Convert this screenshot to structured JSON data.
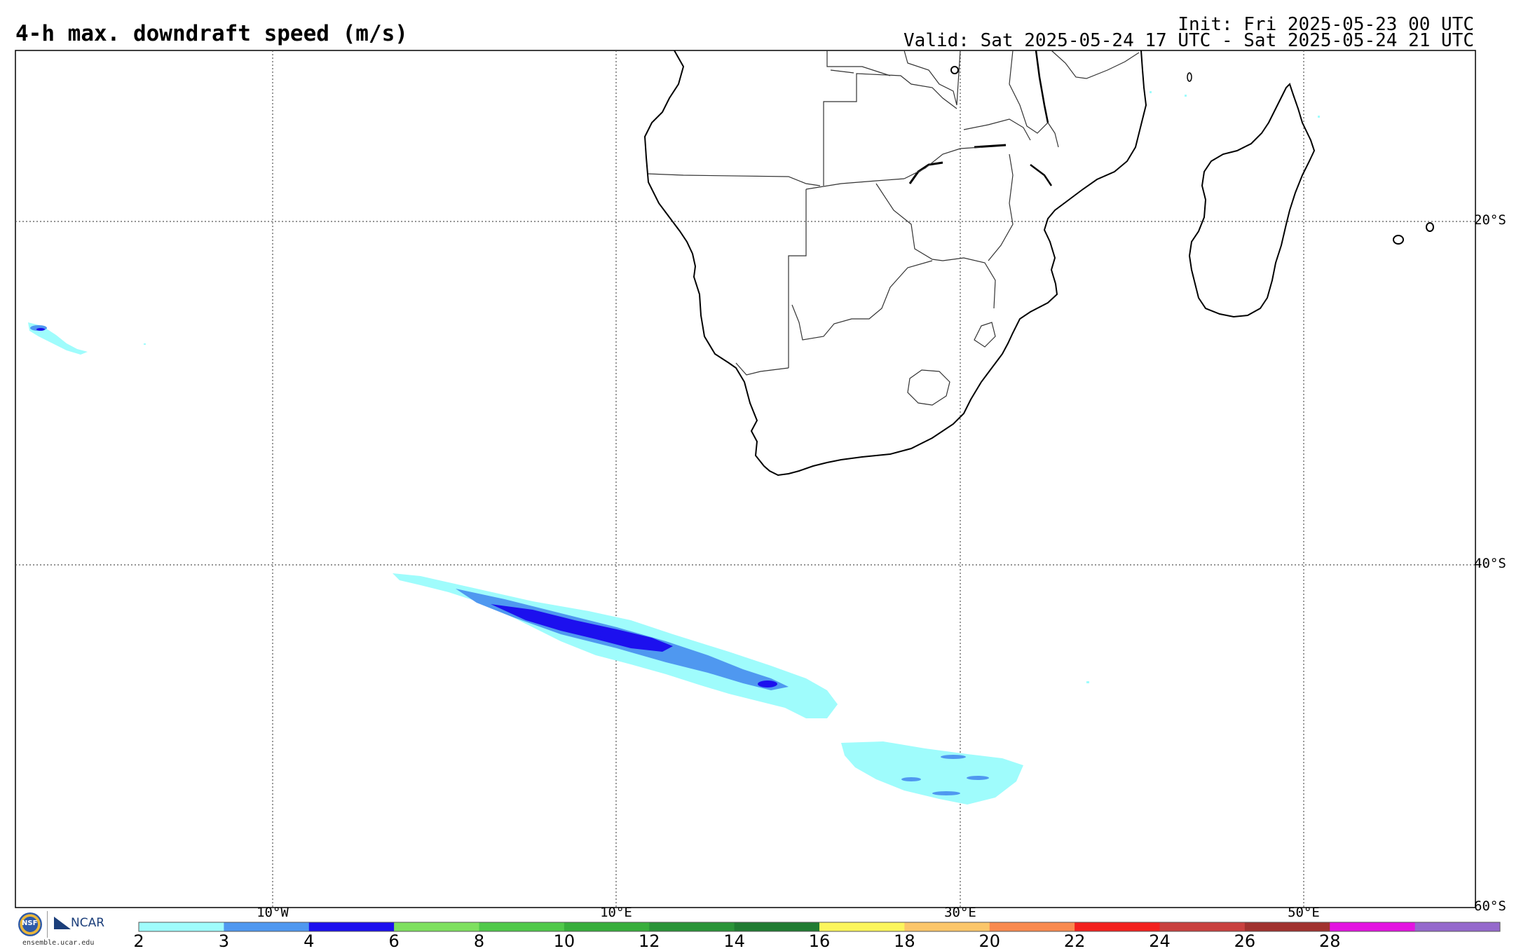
{
  "header": {
    "title": "4-h max. downdraft speed (m/s)",
    "init": "Init: Fri 2025-05-23 00 UTC",
    "valid": "Valid: Sat 2025-05-24 17 UTC - Sat 2025-05-24 21 UTC"
  },
  "map": {
    "lat_labels": [
      "20°S",
      "40°S",
      "60°S"
    ],
    "lon_labels": [
      "10°W",
      "10°E",
      "30°E",
      "50°E"
    ],
    "gridlines": "dotted",
    "field": "downdraft speed",
    "features": [
      "Southern Africa",
      "Madagascar",
      "country borders"
    ]
  },
  "colorbar": {
    "ticks": [
      "2",
      "3",
      "4",
      "6",
      "8",
      "10",
      "12",
      "14",
      "16",
      "18",
      "20",
      "22",
      "24",
      "26",
      "28"
    ],
    "colors": [
      "#9ffcfc",
      "#4f98f0",
      "#1c10ee",
      "#7ee05f",
      "#50c94a",
      "#38ae3c",
      "#2a9438",
      "#207b32",
      "#fbf55c",
      "#fbc66a",
      "#f98a4f",
      "#f3211e",
      "#c9413f",
      "#a1322f",
      "#e314e1",
      "#9569cc"
    ]
  },
  "logo": {
    "nsf": "NSF",
    "ncar": "NCAR",
    "site": "ensemble.ucar.edu"
  }
}
